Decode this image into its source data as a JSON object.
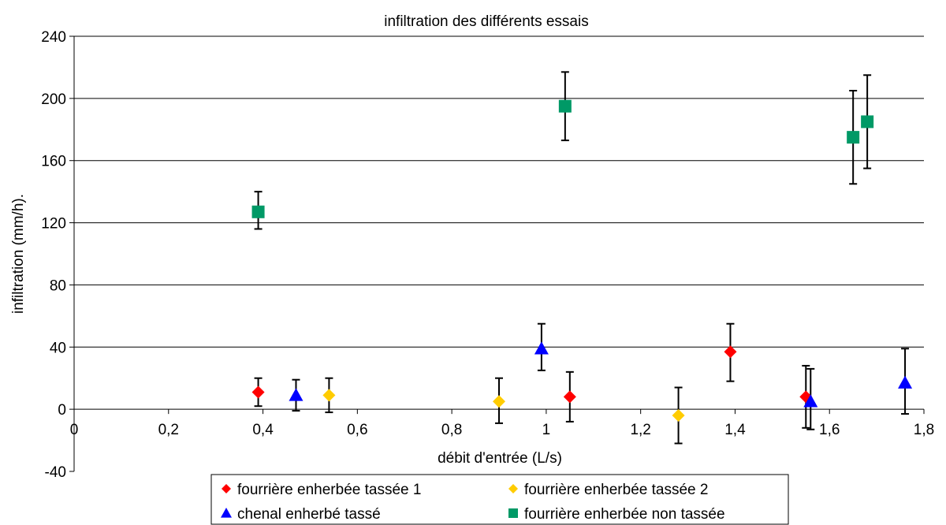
{
  "chart_data": {
    "type": "scatter",
    "title": "infiltration des différents essais",
    "xlabel": "débit d'entrée (L/s)",
    "ylabel": "infiltration (mm/h).",
    "xlim": [
      0,
      1.8
    ],
    "ylim": [
      -40,
      240
    ],
    "x_ticks": [
      0,
      0.2,
      0.4,
      0.6,
      0.8,
      1,
      1.2,
      1.4,
      1.6,
      1.8
    ],
    "x_tick_labels": [
      "0",
      "0,2",
      "0,4",
      "0,6",
      "0,8",
      "1",
      "1,2",
      "1,4",
      "1,6",
      "1,8"
    ],
    "y_ticks": [
      -40,
      0,
      40,
      80,
      120,
      160,
      200,
      240
    ],
    "y_tick_labels": [
      "-40",
      "0",
      "40",
      "80",
      "120",
      "160",
      "200",
      "240"
    ],
    "grid": "horizontal",
    "legend_position": "bottom",
    "series": [
      {
        "name": "fourrière enherbée tassée 1",
        "marker": "diamond",
        "color": "#ff0000",
        "points": [
          {
            "x": 0.39,
            "y": 11,
            "low": 2,
            "high": 20
          },
          {
            "x": 1.05,
            "y": 8,
            "low": -8,
            "high": 24
          },
          {
            "x": 1.39,
            "y": 37,
            "low": 18,
            "high": 55
          },
          {
            "x": 1.55,
            "y": 8,
            "low": -12,
            "high": 28
          }
        ]
      },
      {
        "name": "fourrière enherbée tassée 2",
        "marker": "diamond",
        "color": "#ffcc00",
        "points": [
          {
            "x": 0.54,
            "y": 9,
            "low": -2,
            "high": 20
          },
          {
            "x": 0.9,
            "y": 5,
            "low": -9,
            "high": 20
          },
          {
            "x": 1.28,
            "y": -4,
            "low": -22,
            "high": 14
          }
        ]
      },
      {
        "name": "chenal enherbé tassé",
        "marker": "triangle",
        "color": "#0000ff",
        "points": [
          {
            "x": 0.47,
            "y": 9,
            "low": -1,
            "high": 19
          },
          {
            "x": 0.99,
            "y": 39,
            "low": 25,
            "high": 55
          },
          {
            "x": 1.56,
            "y": 5,
            "low": -13,
            "high": 26
          },
          {
            "x": 1.76,
            "y": 17,
            "low": -3,
            "high": 39
          }
        ]
      },
      {
        "name": "fourrière enherbée non tassée",
        "marker": "square",
        "color": "#009966",
        "points": [
          {
            "x": 0.39,
            "y": 127,
            "low": 116,
            "high": 140
          },
          {
            "x": 1.04,
            "y": 195,
            "low": 173,
            "high": 217
          },
          {
            "x": 1.65,
            "y": 175,
            "low": 145,
            "high": 205
          },
          {
            "x": 1.68,
            "y": 185,
            "low": 155,
            "high": 215
          }
        ]
      }
    ]
  }
}
